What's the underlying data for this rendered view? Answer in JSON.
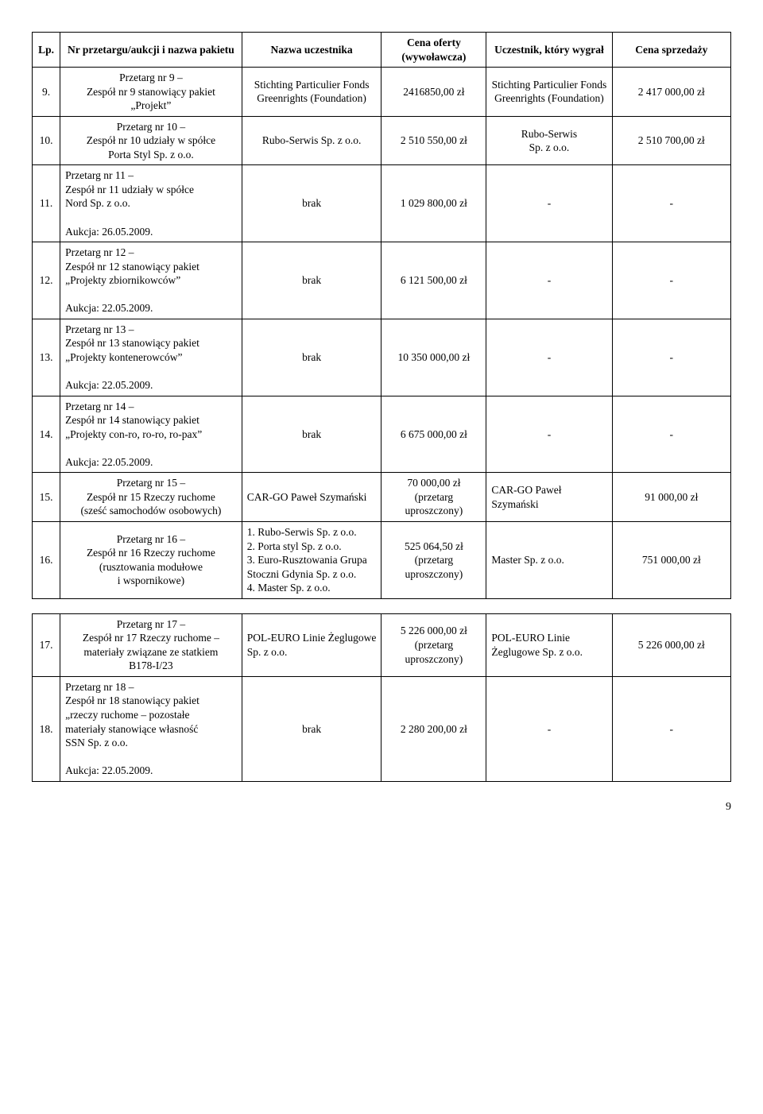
{
  "columns": {
    "lp": "Lp.",
    "pakiet": "Nr przetargu/aukcji i nazwa pakietu",
    "uczestnik": "Nazwa uczestnika",
    "cena_oferty": "Cena oferty (wywoławcza)",
    "wygral": "Uczestnik, który wygrał",
    "cena_sprzedazy": "Cena sprzedaży"
  },
  "rows": [
    {
      "lp": "9.",
      "pakiet": "Przetarg nr 9 –\nZespół nr 9 stanowiący pakiet\n„Projekt”",
      "uczestnik": "Stichting Particulier Fonds Greenrights (Foundation)",
      "cena": "2416850,00 zł",
      "wygral": "Stichting Particulier Fonds Greenrights (Foundation)",
      "sprzedaz": "2 417 000,00 zł"
    },
    {
      "lp": "10.",
      "pakiet": "Przetarg nr 10 –\nZespół nr 10 udziały w spółce\nPorta Styl Sp. z o.o.",
      "uczestnik": "Rubo-Serwis Sp. z o.o.",
      "cena": "2 510 550,00 zł",
      "wygral": "Rubo-Serwis\nSp. z o.o.",
      "sprzedaz": "2 510 700,00 zł"
    },
    {
      "lp": "11.",
      "pakiet": "Przetarg nr 11 –\nZespół nr 11 udziały w spółce\nNord Sp. z o.o.\n\nAukcja: 26.05.2009.",
      "uczestnik": "brak",
      "cena": "1 029 800,00 zł",
      "wygral": "-",
      "sprzedaz": "-",
      "pakiet_left": true
    },
    {
      "lp": "12.",
      "pakiet": "Przetarg nr 12 –\nZespół nr 12 stanowiący pakiet\n„Projekty zbiornikowców”\n\nAukcja: 22.05.2009.",
      "uczestnik": "brak",
      "cena": "6 121 500,00 zł",
      "wygral": "-",
      "sprzedaz": "-",
      "pakiet_left": true
    },
    {
      "lp": "13.",
      "pakiet": "Przetarg nr 13 –\nZespół nr 13 stanowiący pakiet\n„Projekty kontenerowców”\n\nAukcja: 22.05.2009.",
      "uczestnik": "brak",
      "cena": "10 350 000,00 zł",
      "wygral": "-",
      "sprzedaz": "-",
      "pakiet_left": true
    },
    {
      "lp": "14.",
      "pakiet": "Przetarg nr 14 –\nZespół nr 14 stanowiący pakiet\n„Projekty con-ro, ro-ro, ro-pax”\n\nAukcja: 22.05.2009.",
      "uczestnik": "brak",
      "cena": "6 675 000,00 zł",
      "wygral": "-",
      "sprzedaz": "-",
      "pakiet_left": true
    },
    {
      "lp": "15.",
      "pakiet": "Przetarg nr 15 –\nZespół nr 15 Rzeczy ruchome\n(sześć samochodów osobowych)",
      "uczestnik": "CAR-GO Paweł Szymański",
      "cena": "70 000,00 zł\n(przetarg\nuproszczony)",
      "wygral": "CAR-GO Paweł Szymański",
      "sprzedaz": "91 000,00 zł",
      "uczestnik_left": true,
      "wygral_left": true
    },
    {
      "lp": "16.",
      "pakiet": "Przetarg nr 16 –\nZespół nr 16 Rzeczy ruchome\n(rusztowania modułowe\ni wspornikowe)",
      "uczestnik": "1. Rubo-Serwis Sp. z o.o.\n2. Porta styl Sp. z o.o.\n3. Euro-Rusztowania Grupa Stoczni Gdynia Sp. z o.o.\n4. Master Sp. z o.o.",
      "cena": "525 064,50 zł\n(przetarg\nuproszczony)",
      "wygral": "Master Sp. z o.o.",
      "sprzedaz": "751 000,00 zł",
      "uczestnik_left": true,
      "wygral_left": true
    }
  ],
  "rows2": [
    {
      "lp": "17.",
      "pakiet": "Przetarg nr 17 –\nZespół nr 17 Rzeczy ruchome –\nmateriały związane ze statkiem\nB178-I/23",
      "uczestnik": "POL-EURO Linie Żeglugowe Sp. z o.o.",
      "cena": "5 226 000,00 zł\n(przetarg\nuproszczony)",
      "wygral": "POL-EURO Linie Żeglugowe Sp. z o.o.",
      "sprzedaz": "5 226 000,00 zł",
      "uczestnik_left": true,
      "wygral_left": true
    },
    {
      "lp": "18.",
      "pakiet": "Przetarg nr 18 –\nZespół nr 18 stanowiący pakiet\n„rzeczy ruchome – pozostałe\nmateriały stanowiące własność\nSSN Sp. z o.o.\n\nAukcja: 22.05.2009.",
      "uczestnik": "brak",
      "cena": "2 280 200,00 zł",
      "wygral": "-",
      "sprzedaz": "-",
      "pakiet_left": true
    }
  ],
  "page_number": "9"
}
